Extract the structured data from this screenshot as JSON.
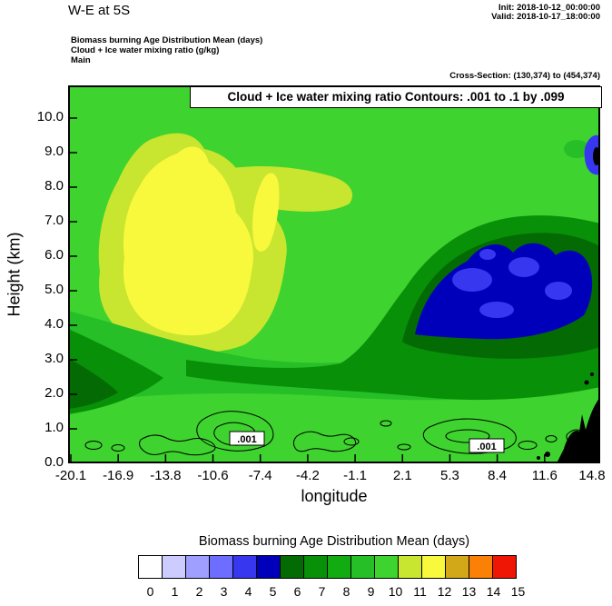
{
  "header": {
    "title": "W-E at 5S",
    "init_line": "Init: 2018-10-12_00:00:00",
    "valid_line": "Valid: 2018-10-17_18:00:00",
    "field_lines": [
      "Biomass burning Age Distribution Mean   (days)",
      "Cloud + Ice water mixing ratio   (g/kg)",
      "Main"
    ],
    "cross_section": "Cross-Section: (130,374) to (454,374)"
  },
  "plot": {
    "annotation": "Cloud + Ice water mixing ratio Contours: .001 to .1 by .099",
    "xlabel": "longitude",
    "ylabel": "Height (km)",
    "yticks": [
      "0.0",
      "1.0",
      "2.0",
      "3.0",
      "4.0",
      "5.0",
      "6.0",
      "7.0",
      "8.0",
      "9.0",
      "10.0"
    ],
    "xticks": [
      "-20.1",
      "-16.9",
      "-13.8",
      "-10.6",
      "-7.4",
      "-4.2",
      "-1.1",
      "2.1",
      "5.3",
      "8.4",
      "11.6",
      "14.8"
    ],
    "contour_labels": [
      ".001",
      ".001"
    ]
  },
  "colorbar": {
    "title": "Biomass burning Age Distribution Mean  (days)",
    "tick_labels": [
      "0",
      "1",
      "2",
      "3",
      "4",
      "5",
      "6",
      "7",
      "8",
      "9",
      "10",
      "11",
      "12",
      "13",
      "14",
      "15"
    ],
    "colors": [
      "#ffffff",
      "#ccccff",
      "#9f9fff",
      "#6d6dff",
      "#3737f0",
      "#0000bb",
      "#046a04",
      "#089008",
      "#12ac12",
      "#27bf27",
      "#3ed32e",
      "#c8e52f",
      "#f8f83c",
      "#d2a818",
      "#fb8006",
      "#f01606"
    ]
  },
  "chart_data": {
    "type": "heatmap",
    "title": "W-E at 5S",
    "xlabel": "longitude",
    "ylabel": "Height (km)",
    "x_longitude": [
      -20.1,
      -16.9,
      -13.8,
      -10.6,
      -7.4,
      -4.2,
      -1.1,
      2.1,
      5.3,
      8.4,
      11.6,
      14.8
    ],
    "y_height_km": [
      0,
      1,
      2,
      3,
      4,
      5,
      6,
      7,
      8,
      9,
      10
    ],
    "values_days_rows_by_height": [
      [
        9,
        10,
        10,
        10,
        10,
        10,
        10,
        10,
        10,
        10,
        10,
        13
      ],
      [
        8,
        9,
        10,
        10,
        10,
        10,
        10,
        10,
        10,
        10,
        10,
        10
      ],
      [
        7,
        8,
        9,
        10,
        10,
        10,
        10,
        9,
        9,
        9,
        9,
        9
      ],
      [
        8,
        9,
        10,
        10,
        10,
        9,
        9,
        8,
        8,
        8,
        8,
        9
      ],
      [
        9,
        10,
        11,
        11,
        10,
        9,
        8,
        6,
        5,
        5,
        6,
        8
      ],
      [
        10,
        11,
        12,
        12,
        11,
        9,
        8,
        5,
        4,
        4,
        5,
        8
      ],
      [
        10,
        11,
        12,
        12,
        11,
        10,
        8,
        5,
        4,
        4,
        5,
        8
      ],
      [
        10,
        11,
        11,
        11,
        11,
        10,
        9,
        6,
        5,
        5,
        6,
        9
      ],
      [
        10,
        11,
        11,
        11,
        11,
        10,
        10,
        9,
        9,
        9,
        9,
        10
      ],
      [
        10,
        10,
        11,
        11,
        10,
        10,
        10,
        10,
        10,
        10,
        10,
        10
      ],
      [
        10,
        10,
        10,
        10,
        10,
        10,
        10,
        10,
        10,
        10,
        10,
        9
      ]
    ],
    "value_range": [
      0,
      15
    ],
    "grid": false,
    "legend_position": "bottom",
    "colorbar_title": "Biomass burning Age Distribution Mean  (days)",
    "overlay_contour_field": "Cloud + Ice water mixing ratio (g/kg)",
    "overlay_contour_levels": ".001 to .1 by .099",
    "terrain_black_region_x": [
      11.6,
      14.8
    ]
  }
}
